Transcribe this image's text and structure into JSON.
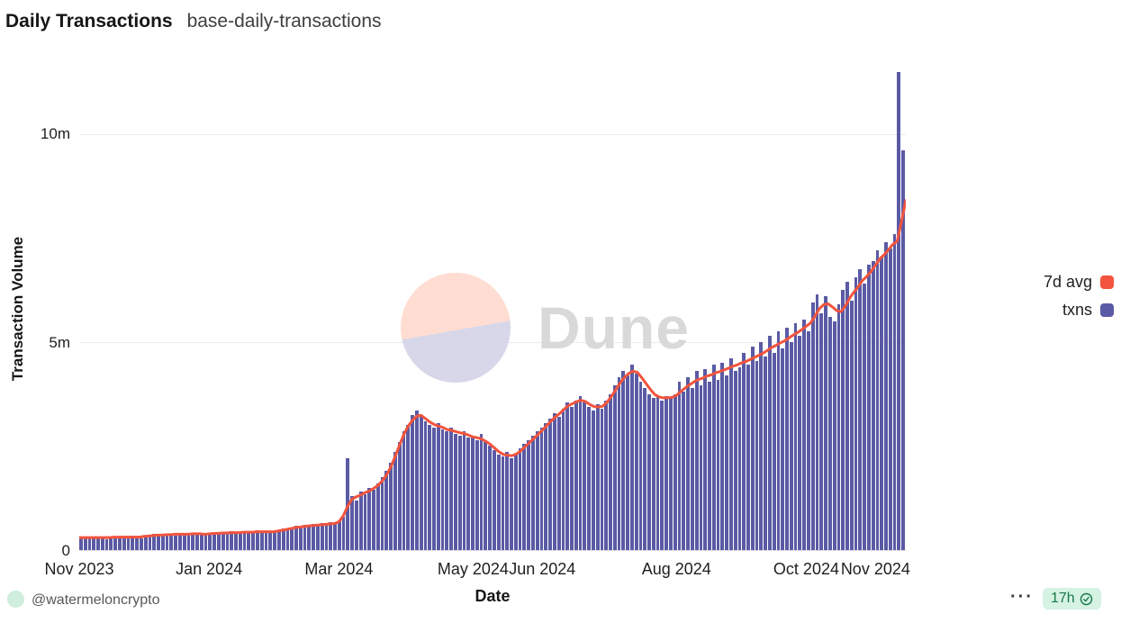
{
  "header": {
    "title": "Daily Transactions",
    "subtitle": "base-daily-transactions"
  },
  "watermark": {
    "text": "Dune"
  },
  "legend": {
    "items": [
      {
        "label": "7d avg",
        "color": "#f2543d"
      },
      {
        "label": "txns",
        "color": "#5a5aa5"
      }
    ]
  },
  "footer": {
    "author": "@watermeloncrypto",
    "menu": "···",
    "badge": "17h"
  },
  "chart_data": {
    "type": "bar",
    "title": "Daily Transactions",
    "xlabel": "Date",
    "ylabel": "Transaction Volume",
    "unit": "millions of transactions per day",
    "ylim": [
      0,
      11.6
    ],
    "grid": "horizontal",
    "legend_position": "right",
    "y_ticks": [
      {
        "label": "0",
        "value": 0
      },
      {
        "label": "5m",
        "value": 5
      },
      {
        "label": "10m",
        "value": 10
      }
    ],
    "x_ticks": [
      {
        "label": "Nov 2023",
        "index": 0
      },
      {
        "label": "Jan 2024",
        "index": 30
      },
      {
        "label": "Mar 2024",
        "index": 60
      },
      {
        "label": "May 2024",
        "index": 91
      },
      {
        "label": "Jun 2024",
        "index": 107
      },
      {
        "label": "Aug 2024",
        "index": 138
      },
      {
        "label": "Oct 2024",
        "index": 168
      },
      {
        "label": "Nov 2024",
        "index": 184
      }
    ],
    "series": [
      {
        "name": "txns",
        "type": "bar",
        "color": "#5a5aa5",
        "values": [
          0.3,
          0.29,
          0.31,
          0.28,
          0.32,
          0.3,
          0.27,
          0.33,
          0.31,
          0.29,
          0.32,
          0.3,
          0.34,
          0.31,
          0.29,
          0.35,
          0.33,
          0.38,
          0.36,
          0.34,
          0.4,
          0.37,
          0.35,
          0.41,
          0.38,
          0.36,
          0.39,
          0.42,
          0.38,
          0.36,
          0.4,
          0.38,
          0.43,
          0.41,
          0.39,
          0.45,
          0.42,
          0.4,
          0.46,
          0.43,
          0.41,
          0.47,
          0.44,
          0.42,
          0.45,
          0.43,
          0.48,
          0.52,
          0.49,
          0.55,
          0.58,
          0.54,
          0.6,
          0.57,
          0.62,
          0.59,
          0.65,
          0.61,
          0.67,
          0.63,
          0.7,
          0.8,
          2.2,
          1.3,
          1.2,
          1.4,
          1.35,
          1.5,
          1.45,
          1.6,
          1.75,
          1.9,
          2.1,
          2.35,
          2.6,
          2.85,
          3.0,
          3.25,
          3.35,
          3.2,
          3.1,
          3.0,
          2.95,
          3.05,
          2.9,
          2.85,
          2.95,
          2.8,
          2.75,
          2.85,
          2.7,
          2.75,
          2.65,
          2.8,
          2.6,
          2.5,
          2.4,
          2.3,
          2.25,
          2.35,
          2.2,
          2.3,
          2.45,
          2.55,
          2.65,
          2.75,
          2.85,
          2.95,
          3.05,
          3.15,
          3.3,
          3.2,
          3.4,
          3.55,
          3.45,
          3.6,
          3.7,
          3.55,
          3.45,
          3.35,
          3.5,
          3.4,
          3.6,
          3.75,
          3.95,
          4.15,
          4.3,
          4.2,
          4.45,
          4.25,
          4.05,
          3.9,
          3.75,
          3.65,
          3.7,
          3.6,
          3.7,
          3.65,
          3.75,
          4.05,
          3.8,
          4.15,
          3.9,
          4.3,
          3.95,
          4.35,
          4.05,
          4.45,
          4.1,
          4.5,
          4.2,
          4.6,
          4.3,
          4.4,
          4.75,
          4.45,
          4.9,
          4.55,
          5.0,
          4.65,
          5.15,
          4.75,
          5.25,
          4.85,
          5.35,
          5.0,
          5.45,
          5.15,
          5.55,
          5.25,
          5.95,
          6.15,
          5.7,
          6.1,
          5.6,
          5.5,
          5.9,
          6.25,
          6.45,
          6.0,
          6.55,
          6.75,
          6.4,
          6.85,
          6.95,
          7.2,
          7.05,
          7.4,
          7.25,
          7.6,
          11.5,
          9.6
        ]
      },
      {
        "name": "7d avg",
        "type": "line",
        "color": "#f2543d",
        "values": [
          0.3,
          0.3,
          0.3,
          0.3,
          0.3,
          0.3,
          0.3,
          0.3,
          0.31,
          0.31,
          0.31,
          0.31,
          0.31,
          0.31,
          0.31,
          0.33,
          0.34,
          0.35,
          0.36,
          0.36,
          0.37,
          0.37,
          0.38,
          0.38,
          0.38,
          0.38,
          0.39,
          0.39,
          0.39,
          0.38,
          0.39,
          0.4,
          0.4,
          0.41,
          0.41,
          0.42,
          0.42,
          0.42,
          0.43,
          0.43,
          0.43,
          0.44,
          0.44,
          0.44,
          0.44,
          0.44,
          0.46,
          0.48,
          0.5,
          0.52,
          0.54,
          0.55,
          0.57,
          0.58,
          0.59,
          0.6,
          0.61,
          0.62,
          0.63,
          0.64,
          0.68,
          0.82,
          1.05,
          1.22,
          1.28,
          1.32,
          1.38,
          1.42,
          1.48,
          1.55,
          1.66,
          1.8,
          2.0,
          2.25,
          2.52,
          2.78,
          2.98,
          3.12,
          3.22,
          3.24,
          3.16,
          3.08,
          3.02,
          2.98,
          2.95,
          2.9,
          2.88,
          2.85,
          2.82,
          2.8,
          2.76,
          2.72,
          2.7,
          2.67,
          2.61,
          2.54,
          2.45,
          2.36,
          2.3,
          2.28,
          2.27,
          2.31,
          2.38,
          2.48,
          2.58,
          2.68,
          2.78,
          2.88,
          2.99,
          3.1,
          3.2,
          3.28,
          3.38,
          3.47,
          3.52,
          3.57,
          3.6,
          3.57,
          3.5,
          3.45,
          3.44,
          3.46,
          3.56,
          3.7,
          3.86,
          4.02,
          4.15,
          4.25,
          4.3,
          4.27,
          4.14,
          4.0,
          3.86,
          3.74,
          3.68,
          3.66,
          3.66,
          3.67,
          3.72,
          3.81,
          3.9,
          3.97,
          4.04,
          4.1,
          4.13,
          4.18,
          4.21,
          4.26,
          4.29,
          4.33,
          4.37,
          4.42,
          4.45,
          4.5,
          4.53,
          4.58,
          4.63,
          4.68,
          4.73,
          4.8,
          4.87,
          4.92,
          4.98,
          5.03,
          5.1,
          5.17,
          5.23,
          5.3,
          5.38,
          5.46,
          5.62,
          5.8,
          5.9,
          5.92,
          5.85,
          5.76,
          5.73,
          5.86,
          6.05,
          6.2,
          6.33,
          6.48,
          6.58,
          6.7,
          6.85,
          7.0,
          7.1,
          7.22,
          7.35,
          7.42,
          7.9,
          8.4
        ]
      }
    ]
  }
}
